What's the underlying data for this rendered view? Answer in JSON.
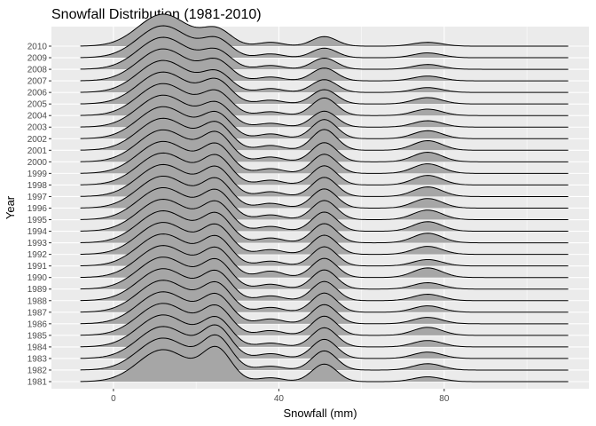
{
  "chart_data": {
    "type": "area",
    "subtype": "ridgeline",
    "title": "Snowfall Distribution (1981-2010)",
    "xlabel": "Snowfall (mm)",
    "ylabel": "Year",
    "xlim": [
      -15,
      115
    ],
    "x_ticks": [
      0,
      40,
      80
    ],
    "x_tick_labels": [
      "0",
      "40",
      "80"
    ],
    "categories": [
      "1981",
      "1982",
      "1983",
      "1984",
      "1985",
      "1986",
      "1987",
      "1988",
      "1989",
      "1990",
      "1991",
      "1992",
      "1993",
      "1994",
      "1995",
      "1996",
      "1997",
      "1998",
      "1999",
      "2000",
      "2001",
      "2002",
      "2003",
      "2004",
      "2005",
      "2006",
      "2007",
      "2008",
      "2009",
      "2010"
    ],
    "density_x_range": [
      -8,
      110
    ],
    "density_peaks": {
      "x": [
        12,
        25,
        38,
        51,
        76
      ],
      "width": [
        6,
        3.5,
        3,
        3,
        3.5
      ]
    },
    "series": [
      {
        "name": "1981",
        "weights": [
          1.0,
          1.0,
          0.12,
          0.55,
          0.15
        ]
      },
      {
        "name": "1982",
        "weights": [
          1.0,
          1.0,
          0.12,
          0.6,
          0.2
        ]
      },
      {
        "name": "1983",
        "weights": [
          1.0,
          0.95,
          0.15,
          0.6,
          0.2
        ]
      },
      {
        "name": "1984",
        "weights": [
          1.0,
          0.85,
          0.12,
          0.6,
          0.2
        ]
      },
      {
        "name": "1985",
        "weights": [
          1.0,
          0.85,
          0.15,
          0.6,
          0.25
        ]
      },
      {
        "name": "1986",
        "weights": [
          1.0,
          0.85,
          0.15,
          0.6,
          0.2
        ]
      },
      {
        "name": "1987",
        "weights": [
          1.0,
          0.85,
          0.15,
          0.6,
          0.2
        ]
      },
      {
        "name": "1988",
        "weights": [
          1.0,
          0.85,
          0.15,
          0.6,
          0.2
        ]
      },
      {
        "name": "1989",
        "weights": [
          1.0,
          0.85,
          0.15,
          0.6,
          0.2
        ]
      },
      {
        "name": "1990",
        "weights": [
          1.0,
          0.85,
          0.2,
          0.6,
          0.3
        ]
      },
      {
        "name": "1991",
        "weights": [
          1.0,
          0.85,
          0.15,
          0.6,
          0.2
        ]
      },
      {
        "name": "1992",
        "weights": [
          1.0,
          0.85,
          0.15,
          0.6,
          0.25
        ]
      },
      {
        "name": "1993",
        "weights": [
          1.0,
          0.85,
          0.15,
          0.6,
          0.3
        ]
      },
      {
        "name": "1994",
        "weights": [
          1.0,
          0.85,
          0.15,
          0.6,
          0.3
        ]
      },
      {
        "name": "1995",
        "weights": [
          1.0,
          0.85,
          0.15,
          0.6,
          0.3
        ]
      },
      {
        "name": "1996",
        "weights": [
          1.0,
          0.85,
          0.15,
          0.6,
          0.3
        ]
      },
      {
        "name": "1997",
        "weights": [
          1.0,
          0.85,
          0.15,
          0.6,
          0.3
        ]
      },
      {
        "name": "1998",
        "weights": [
          1.0,
          0.85,
          0.15,
          0.6,
          0.3
        ]
      },
      {
        "name": "1999",
        "weights": [
          1.0,
          0.85,
          0.15,
          0.6,
          0.3
        ]
      },
      {
        "name": "2000",
        "weights": [
          1.0,
          0.85,
          0.15,
          0.6,
          0.3
        ]
      },
      {
        "name": "2001",
        "weights": [
          1.0,
          0.8,
          0.15,
          0.65,
          0.3
        ]
      },
      {
        "name": "2002",
        "weights": [
          1.0,
          0.75,
          0.15,
          0.6,
          0.25
        ]
      },
      {
        "name": "2003",
        "weights": [
          1.0,
          0.7,
          0.12,
          0.5,
          0.2
        ]
      },
      {
        "name": "2004",
        "weights": [
          1.0,
          0.7,
          0.12,
          0.55,
          0.2
        ]
      },
      {
        "name": "2005",
        "weights": [
          1.0,
          0.7,
          0.12,
          0.45,
          0.2
        ]
      },
      {
        "name": "2006",
        "weights": [
          1.0,
          0.6,
          0.12,
          0.4,
          0.15
        ]
      },
      {
        "name": "2007",
        "weights": [
          1.0,
          0.6,
          0.12,
          0.4,
          0.15
        ]
      },
      {
        "name": "2008",
        "weights": [
          1.0,
          0.55,
          0.12,
          0.35,
          0.15
        ]
      },
      {
        "name": "2009",
        "weights": [
          1.0,
          0.55,
          0.12,
          0.3,
          0.15
        ]
      },
      {
        "name": "2010",
        "weights": [
          1.0,
          0.5,
          0.12,
          0.3,
          0.12
        ]
      }
    ],
    "grid": true,
    "legend": "none",
    "colors": {
      "panel_background": "#ebebeb",
      "grid_major": "#ffffff",
      "ridge_fill": "#a6a6a6",
      "ridge_line": "#000000"
    }
  }
}
